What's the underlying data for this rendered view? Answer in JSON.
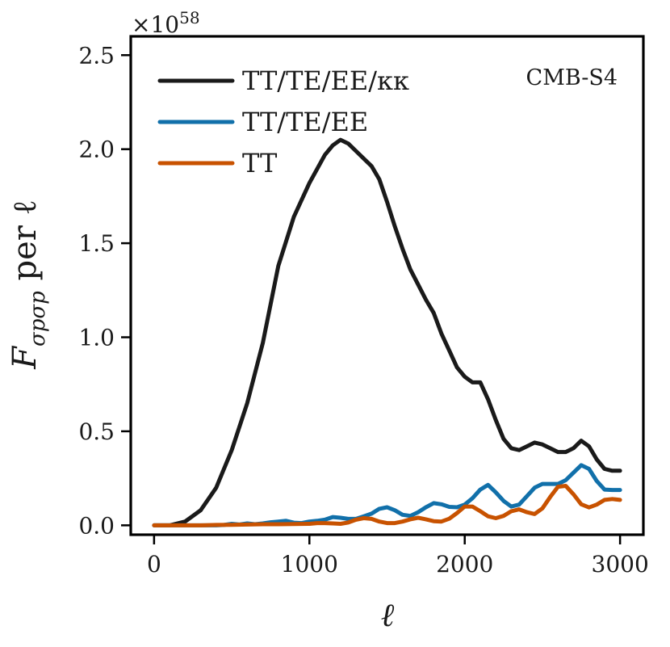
{
  "chart_data": {
    "type": "line",
    "title": "",
    "xlabel": "ℓ",
    "ylabel": "F",
    "ylabel_sub": "σpσp",
    "ylabel_suffix": " per ℓ",
    "y_multiplier": "×10",
    "y_multiplier_exp": "58",
    "annotation": "CMB-S4",
    "xlim": [
      -150,
      3150
    ],
    "ylim": [
      -0.05,
      2.6
    ],
    "xticks": [
      0,
      1000,
      2000,
      3000
    ],
    "yticks": [
      0.0,
      0.5,
      1.0,
      1.5,
      2.0,
      2.5
    ],
    "xtick_labels": [
      "0",
      "1000",
      "2000",
      "3000"
    ],
    "ytick_labels": [
      "0.0",
      "0.5",
      "1.0",
      "1.5",
      "2.0",
      "2.5"
    ],
    "legend_position": "upper-left",
    "grid": false,
    "series": [
      {
        "name": "TT/TE/EE/κκ",
        "color": "#1a1a1a",
        "x": [
          0,
          100,
          200,
          300,
          400,
          500,
          600,
          700,
          800,
          900,
          1000,
          1100,
          1150,
          1200,
          1250,
          1300,
          1350,
          1400,
          1450,
          1500,
          1550,
          1600,
          1650,
          1700,
          1750,
          1800,
          1850,
          1900,
          1950,
          2000,
          2050,
          2100,
          2150,
          2200,
          2250,
          2300,
          2350,
          2400,
          2450,
          2500,
          2550,
          2600,
          2650,
          2700,
          2750,
          2800,
          2850,
          2900,
          2950,
          3000
        ],
        "y": [
          0.0,
          0.0,
          0.02,
          0.08,
          0.2,
          0.4,
          0.65,
          0.97,
          1.38,
          1.64,
          1.82,
          1.97,
          2.02,
          2.05,
          2.03,
          1.99,
          1.95,
          1.91,
          1.84,
          1.72,
          1.59,
          1.47,
          1.36,
          1.28,
          1.2,
          1.13,
          1.02,
          0.93,
          0.84,
          0.79,
          0.76,
          0.76,
          0.67,
          0.56,
          0.46,
          0.41,
          0.4,
          0.42,
          0.44,
          0.43,
          0.41,
          0.39,
          0.39,
          0.41,
          0.45,
          0.42,
          0.35,
          0.3,
          0.29,
          0.29
        ]
      },
      {
        "name": "TT/TE/EE",
        "color": "#1170aa",
        "x": [
          0,
          100,
          200,
          300,
          400,
          450,
          500,
          550,
          600,
          650,
          700,
          750,
          800,
          850,
          900,
          950,
          1000,
          1050,
          1100,
          1150,
          1200,
          1250,
          1300,
          1350,
          1400,
          1450,
          1500,
          1550,
          1600,
          1650,
          1700,
          1750,
          1800,
          1850,
          1900,
          1950,
          2000,
          2050,
          2100,
          2150,
          2200,
          2250,
          2300,
          2350,
          2400,
          2450,
          2500,
          2550,
          2600,
          2650,
          2700,
          2750,
          2800,
          2850,
          2900,
          2950,
          3000
        ],
        "y": [
          0.0,
          0.0,
          0.0,
          0.0,
          0.0,
          0.002,
          0.008,
          0.004,
          0.01,
          0.006,
          0.01,
          0.016,
          0.02,
          0.024,
          0.014,
          0.012,
          0.02,
          0.024,
          0.03,
          0.044,
          0.04,
          0.034,
          0.034,
          0.048,
          0.062,
          0.088,
          0.096,
          0.08,
          0.056,
          0.05,
          0.07,
          0.096,
          0.118,
          0.112,
          0.098,
          0.096,
          0.11,
          0.144,
          0.19,
          0.215,
          0.175,
          0.13,
          0.1,
          0.11,
          0.155,
          0.2,
          0.22,
          0.22,
          0.22,
          0.24,
          0.28,
          0.32,
          0.3,
          0.235,
          0.19,
          0.188,
          0.188
        ]
      },
      {
        "name": "TT",
        "color": "#c85200",
        "x": [
          0,
          100,
          200,
          300,
          400,
          500,
          600,
          700,
          800,
          900,
          1000,
          1050,
          1100,
          1150,
          1200,
          1250,
          1300,
          1350,
          1400,
          1450,
          1500,
          1550,
          1600,
          1650,
          1700,
          1750,
          1800,
          1850,
          1900,
          1950,
          2000,
          2050,
          2100,
          2150,
          2200,
          2250,
          2300,
          2350,
          2400,
          2450,
          2500,
          2550,
          2600,
          2650,
          2700,
          2750,
          2800,
          2850,
          2900,
          2950,
          3000
        ],
        "y": [
          0.0,
          0.0,
          0.0,
          0.0,
          0.002,
          0.003,
          0.004,
          0.006,
          0.006,
          0.007,
          0.008,
          0.012,
          0.012,
          0.01,
          0.008,
          0.015,
          0.03,
          0.038,
          0.034,
          0.02,
          0.012,
          0.012,
          0.02,
          0.032,
          0.04,
          0.032,
          0.022,
          0.02,
          0.035,
          0.065,
          0.1,
          0.1,
          0.075,
          0.048,
          0.038,
          0.05,
          0.075,
          0.085,
          0.07,
          0.06,
          0.09,
          0.15,
          0.205,
          0.21,
          0.165,
          0.112,
          0.095,
          0.11,
          0.135,
          0.14,
          0.135
        ]
      }
    ]
  }
}
